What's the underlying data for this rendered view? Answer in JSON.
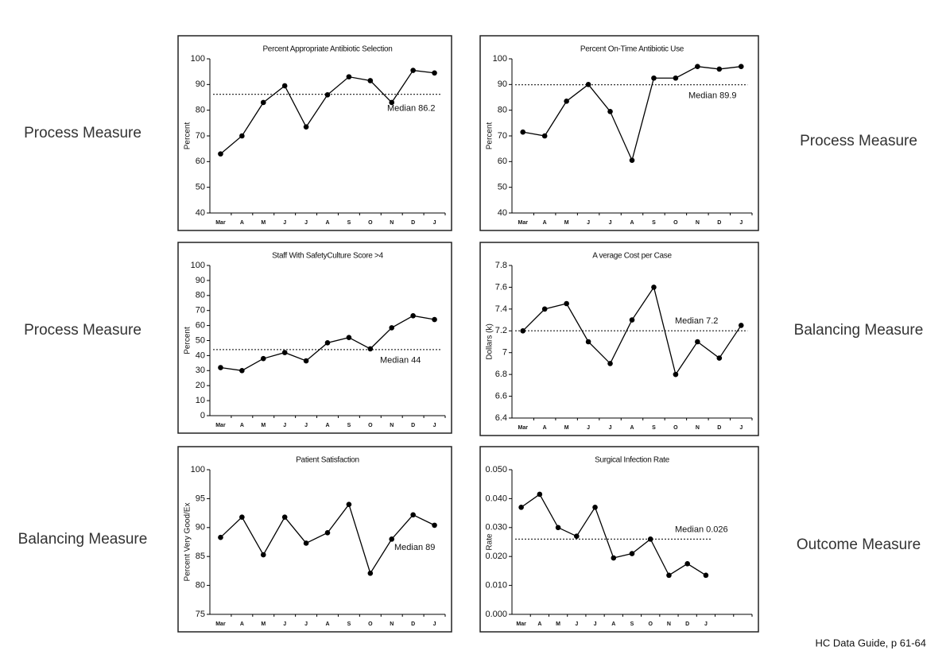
{
  "chart_data": [
    {
      "type": "line",
      "title": "Percent Appropriate Antibiotic Selection",
      "y_label": "Percent",
      "categories": [
        "Mar",
        "A",
        "M",
        "J",
        "J",
        "A",
        "S",
        "O",
        "N",
        "D",
        "J"
      ],
      "values": [
        63,
        70,
        83,
        89.5,
        73.5,
        86,
        93,
        91.5,
        83,
        95.5,
        94.5
      ],
      "ylim": [
        40,
        100
      ],
      "yticks": [
        40,
        50,
        60,
        70,
        80,
        90,
        100
      ],
      "median": 86.2,
      "median_label": "Median 86.2",
      "color": "#000000"
    },
    {
      "type": "line",
      "title": "Percent On-Time Antibiotic Use",
      "y_label": "Percent",
      "categories": [
        "Mar",
        "A",
        "M",
        "J",
        "J",
        "A",
        "S",
        "O",
        "N",
        "D",
        "J"
      ],
      "values": [
        71.5,
        70,
        83.5,
        90,
        79.5,
        60.5,
        92.5,
        92.5,
        97,
        96,
        97
      ],
      "ylim": [
        40,
        100
      ],
      "yticks": [
        40,
        50,
        60,
        70,
        80,
        90,
        100
      ],
      "median": 89.9,
      "median_label": "Median 89.9",
      "color": "#000000"
    },
    {
      "type": "line",
      "title": "Staff With SafetyCulture Score >4",
      "y_label": "Percent",
      "categories": [
        "Mar",
        "A",
        "M",
        "J",
        "J",
        "A",
        "S",
        "O",
        "N",
        "D",
        "J"
      ],
      "values": [
        32,
        30,
        38,
        42,
        36.5,
        48.5,
        52,
        44.5,
        58.5,
        66.5,
        64
      ],
      "ylim": [
        0,
        100
      ],
      "yticks": [
        0,
        10,
        20,
        30,
        40,
        50,
        60,
        70,
        80,
        90,
        100
      ],
      "median": 44,
      "median_label": "Median 44",
      "color": "#000000"
    },
    {
      "type": "line",
      "title": "A verage Cost per Case",
      "y_label": "Dollars (k)",
      "categories": [
        "Mar",
        "A",
        "M",
        "J",
        "J",
        "A",
        "S",
        "O",
        "N",
        "D",
        "J"
      ],
      "values": [
        7.2,
        7.4,
        7.45,
        7.1,
        6.9,
        7.3,
        7.6,
        6.8,
        7.1,
        6.95,
        7.25
      ],
      "ylim": [
        6.4,
        7.8
      ],
      "yticks": [
        6.4,
        6.6,
        6.8,
        7,
        7.2,
        7.4,
        7.6,
        7.8
      ],
      "median": 7.2,
      "median_label": "Median 7.2",
      "color": "#000000"
    },
    {
      "type": "line",
      "title": "Patient Satisfaction",
      "y_label": "Percent Very Good/Ex",
      "categories": [
        "Mar",
        "A",
        "M",
        "J",
        "J",
        "A",
        "S",
        "O",
        "N",
        "D",
        "J"
      ],
      "values": [
        88.3,
        91.8,
        85.3,
        91.8,
        87.3,
        89.1,
        94,
        82.1,
        88,
        92.2,
        90.4
      ],
      "ylim": [
        75,
        100
      ],
      "yticks": [
        75,
        80,
        85,
        90,
        95,
        100
      ],
      "median_label": "Median 89",
      "color": "#000000"
    },
    {
      "type": "line",
      "title": "Surgical Infection Rate",
      "y_label": "Rate",
      "categories": [
        "Mar",
        "A",
        "M",
        "J",
        "J",
        "A",
        "S",
        "O",
        "N",
        "D",
        "J",
        null,
        null
      ],
      "values": [
        0.037,
        0.0415,
        0.03,
        0.027,
        0.037,
        0.0195,
        0.021,
        0.026,
        0.0135,
        0.0175,
        0.0135,
        null,
        null
      ],
      "ylim": [
        0,
        0.05
      ],
      "yticks": [
        {
          "value": 0,
          "label": "0.000"
        },
        {
          "value": 0.01,
          "label": "0.010"
        },
        {
          "value": 0.02,
          "label": "0.020"
        },
        {
          "value": 0.03,
          "label": "0.030"
        },
        {
          "value": 0.04,
          "label": "0.040"
        },
        {
          "value": 0.05,
          "label": "0.050"
        }
      ],
      "median": 0.026,
      "median_label": "Median 0.026",
      "color": "#000000"
    }
  ],
  "side_labels": [
    "Process Measure",
    "Process Measure",
    "Process Measure",
    "Balancing Measure",
    "Balancing Measure",
    "Outcome Measure"
  ],
  "footer": "HC Data Guide, p 61-64"
}
